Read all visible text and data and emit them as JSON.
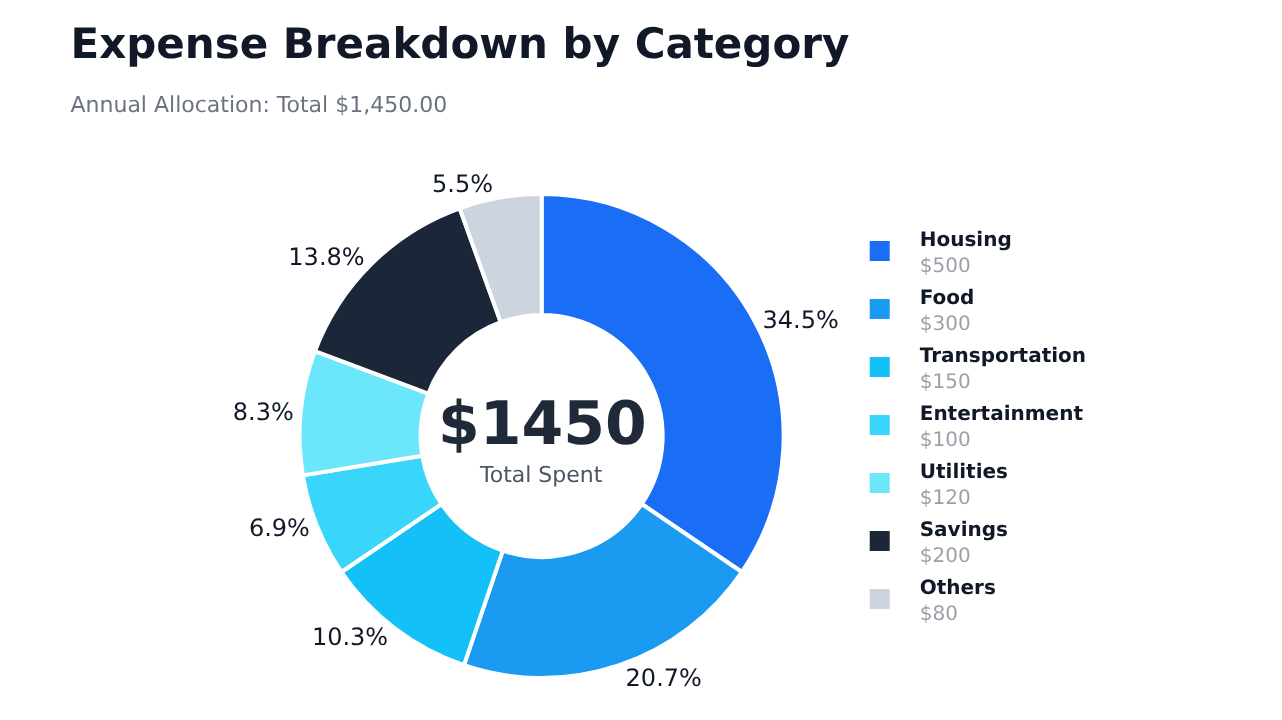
{
  "chart_data": {
    "type": "donut",
    "title": "Expense Breakdown by Category",
    "subtitle": "Annual Allocation: Total $1,450.00",
    "categories": [
      "Housing\n$500",
      "Food\n$300",
      "Transportation\n$150",
      "Entertainment\n$100",
      "Utilities\n$120",
      "Savings\n$200",
      "Others\n$80"
    ],
    "values": [
      34.5,
      20.7,
      10.3,
      6.9,
      8.3,
      13.8,
      5.5
    ],
    "colors": [
      "#1a6ef5",
      "#1a9af0",
      "#13c1f8",
      "#3ad5fb",
      "#6be6fb",
      "#1c2639",
      "#cbd4df"
    ],
    "value_labels": [
      "34.5%",
      "20.7%",
      "10.3%",
      "6.9%",
      "8.3%",
      "13.8%",
      "5.5%"
    ],
    "annotations": [
      "$1450",
      "Total Spent"
    ],
    "legend": "right"
  }
}
